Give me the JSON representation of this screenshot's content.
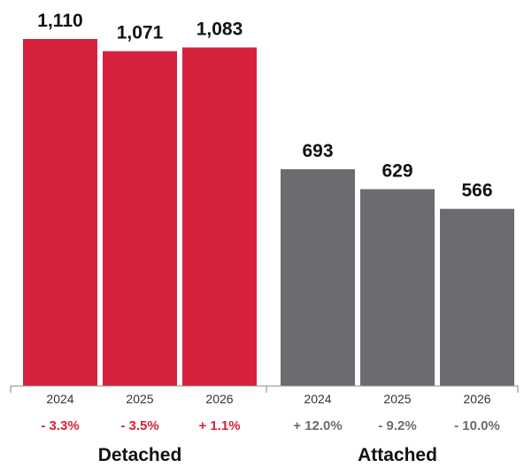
{
  "chart_data": {
    "type": "bar",
    "groups": [
      {
        "name": "Detached",
        "color": "#d7223d",
        "pct_color": "#d7223d",
        "bars": [
          {
            "year": "2024",
            "value": 1110,
            "value_label": "1,110",
            "change": "- 3.3%"
          },
          {
            "year": "2025",
            "value": 1071,
            "value_label": "1,071",
            "change": "- 3.5%"
          },
          {
            "year": "2026",
            "value": 1083,
            "value_label": "1,083",
            "change": "+ 1.1%"
          }
        ]
      },
      {
        "name": "Attached",
        "color": "#6b6c70",
        "pct_color": "#6b6c70",
        "bars": [
          {
            "year": "2024",
            "value": 693,
            "value_label": "693",
            "change": "+ 12.0%"
          },
          {
            "year": "2025",
            "value": 629,
            "value_label": "629",
            "change": "- 9.2%"
          },
          {
            "year": "2026",
            "value": 566,
            "value_label": "566",
            "change": "- 10.0%"
          }
        ]
      }
    ],
    "ylim": [
      0,
      1110
    ],
    "grid": false,
    "axis_color": "#aaaaaa"
  }
}
